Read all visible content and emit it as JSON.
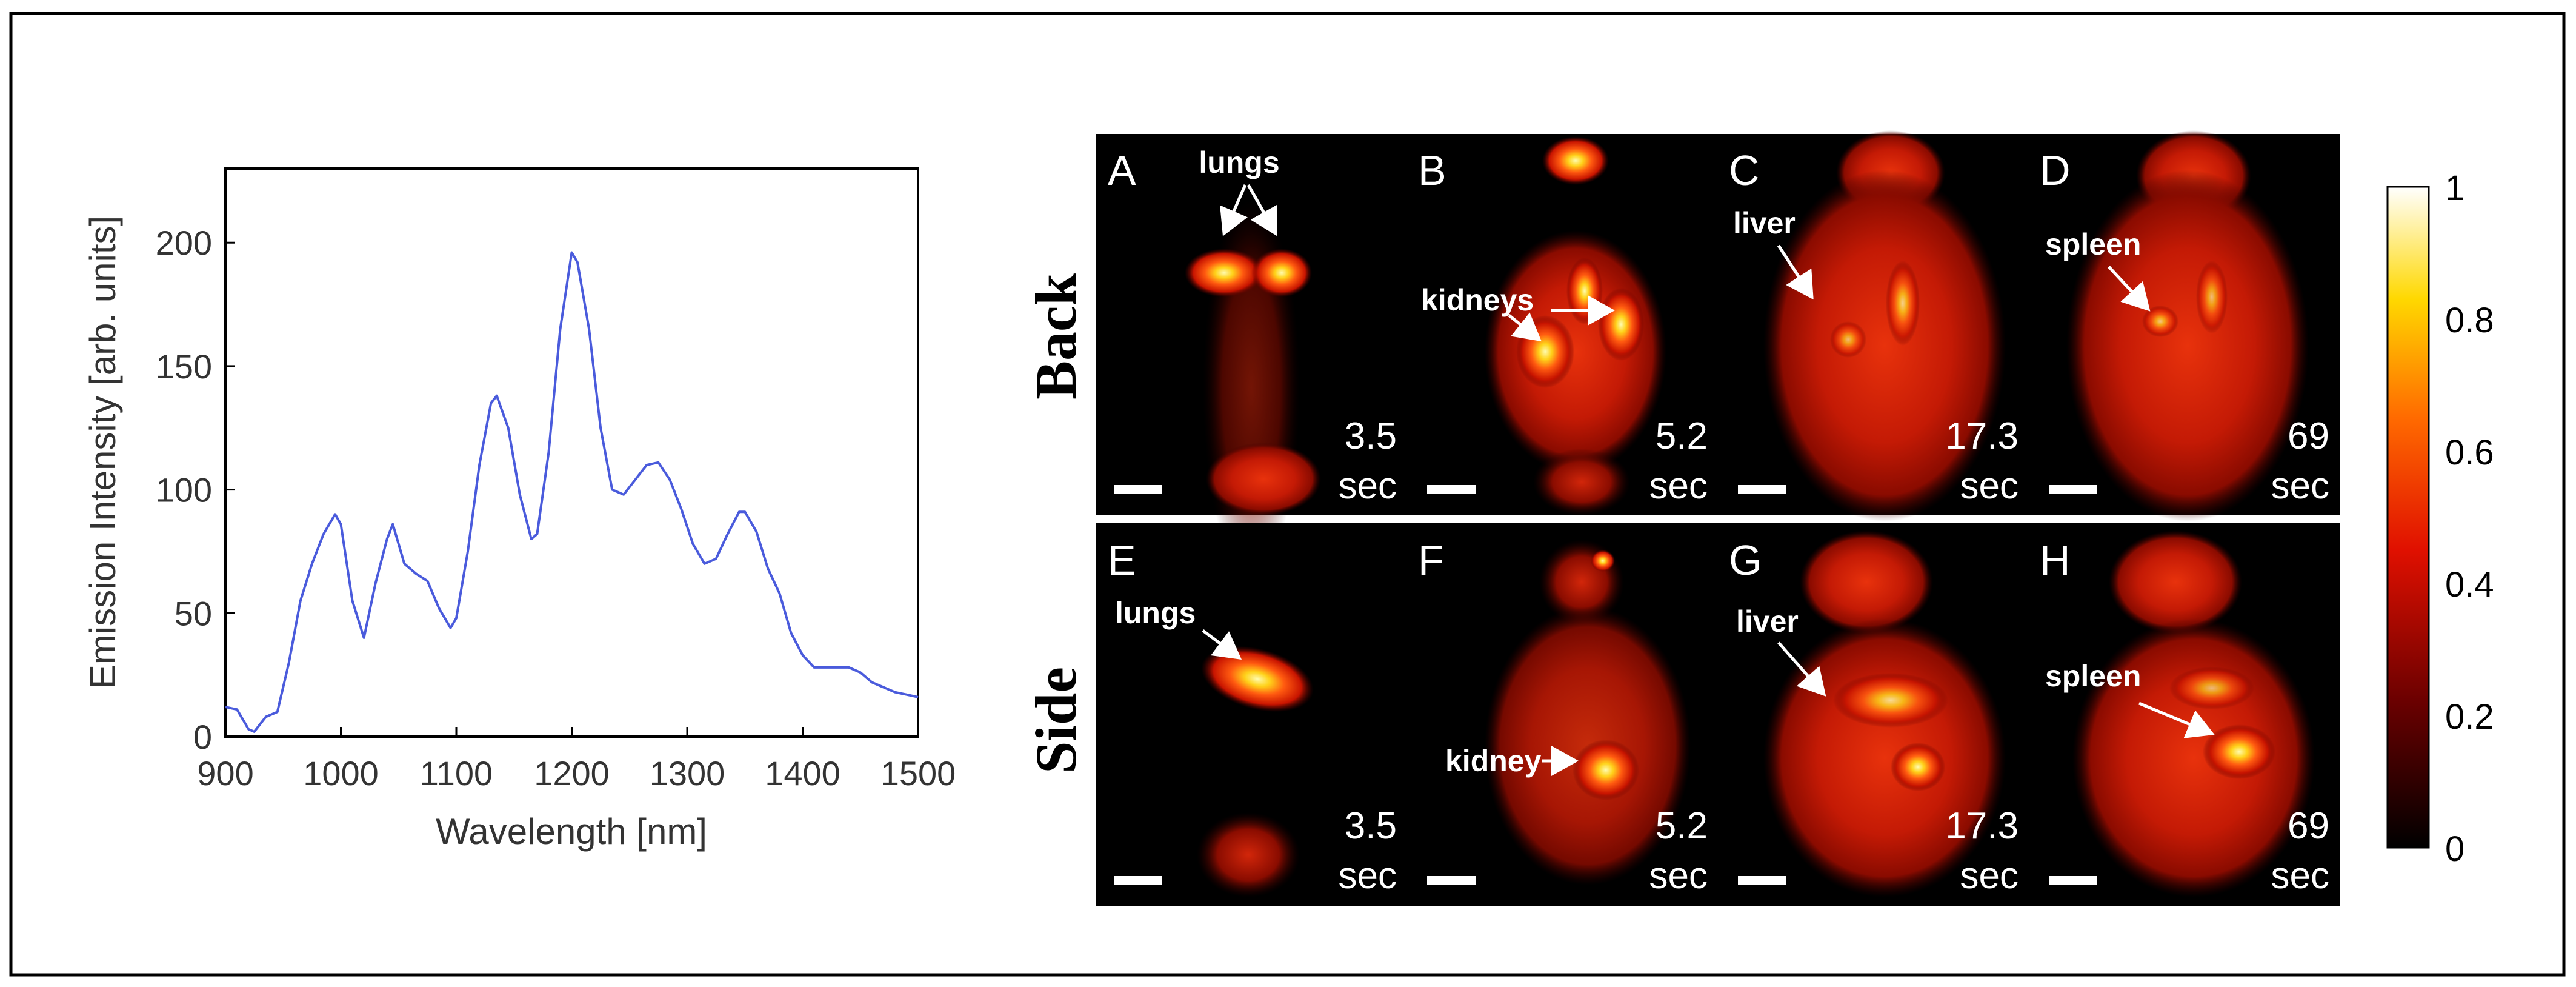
{
  "chart_data": {
    "type": "line",
    "title": "",
    "xlabel": "Wavelength [nm]",
    "ylabel": "Emission Intensity [arb. units]",
    "xlim": [
      900,
      1500
    ],
    "ylim": [
      0,
      230
    ],
    "xticks": [
      900,
      1000,
      1100,
      1200,
      1300,
      1400,
      1500
    ],
    "yticks": [
      0,
      50,
      100,
      150,
      200
    ],
    "grid": false,
    "series": [
      {
        "name": "emission",
        "color": "#4a5bdc",
        "x": [
          900,
          910,
          920,
          925,
          935,
          945,
          955,
          965,
          975,
          985,
          995,
          1000,
          1010,
          1020,
          1030,
          1040,
          1045,
          1055,
          1065,
          1075,
          1085,
          1095,
          1100,
          1110,
          1120,
          1130,
          1135,
          1145,
          1155,
          1165,
          1170,
          1180,
          1190,
          1200,
          1205,
          1215,
          1225,
          1235,
          1245,
          1255,
          1265,
          1275,
          1285,
          1295,
          1305,
          1315,
          1325,
          1335,
          1345,
          1350,
          1360,
          1370,
          1380,
          1390,
          1400,
          1410,
          1420,
          1430,
          1440,
          1450,
          1460,
          1470,
          1480,
          1490,
          1500
        ],
        "y": [
          12,
          11,
          3,
          2,
          8,
          10,
          30,
          55,
          70,
          82,
          90,
          86,
          55,
          40,
          62,
          80,
          86,
          70,
          66,
          63,
          52,
          44,
          48,
          75,
          110,
          135,
          138,
          125,
          98,
          80,
          82,
          115,
          165,
          196,
          192,
          165,
          125,
          100,
          98,
          104,
          110,
          111,
          104,
          92,
          78,
          70,
          72,
          82,
          91,
          91,
          83,
          68,
          58,
          42,
          33,
          28,
          28,
          28,
          28,
          26,
          22,
          20,
          18,
          17,
          16
        ]
      }
    ]
  },
  "panels": {
    "rows": {
      "back_label": "Back",
      "side_label": "Side"
    },
    "colorbar": {
      "ticks": [
        "1",
        "0.8",
        "0.6",
        "0.4",
        "0.2",
        "0"
      ]
    },
    "items": [
      {
        "letter": "A",
        "time": "3.5",
        "unit": "sec"
      },
      {
        "letter": "B",
        "time": "5.2",
        "unit": "sec"
      },
      {
        "letter": "C",
        "time": "17.3",
        "unit": "sec"
      },
      {
        "letter": "D",
        "time": "69",
        "unit": "sec"
      },
      {
        "letter": "E",
        "time": "3.5",
        "unit": "sec"
      },
      {
        "letter": "F",
        "time": "5.2",
        "unit": "sec"
      },
      {
        "letter": "G",
        "time": "17.3",
        "unit": "sec"
      },
      {
        "letter": "H",
        "time": "69",
        "unit": "sec"
      }
    ],
    "annotations": {
      "a_lungs": "lungs",
      "b_kidneys": "kidneys",
      "c_liver": "liver",
      "d_spleen": "spleen",
      "e_lungs": "lungs",
      "f_kidney": "kidney",
      "g_liver": "liver",
      "h_spleen": "spleen"
    }
  }
}
